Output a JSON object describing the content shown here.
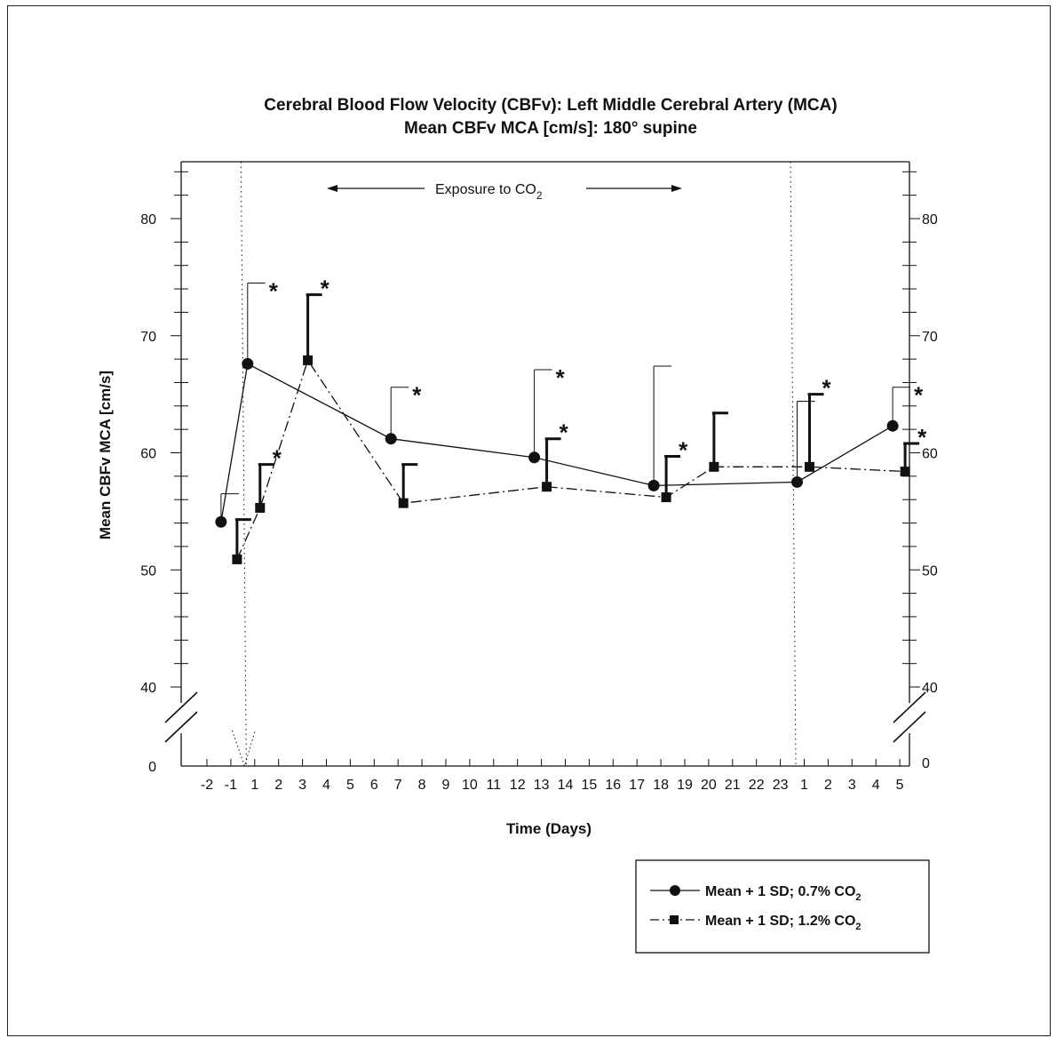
{
  "chart_data": {
    "type": "line",
    "title": "Cerebral Blood Flow Velocity (CBFv): Left Middle Cerebral Artery (MCA)",
    "subtitle": "Mean CBFv MCA [cm/s]: 180° supine",
    "ylabel": "Mean CBFv MCA [cm/s]",
    "xlabel": "Time (Days)",
    "ylim": [
      40,
      85
    ],
    "y_break_label": "0",
    "yticks": [
      40,
      50,
      60,
      70,
      80
    ],
    "x_tick_labels": [
      "-2",
      "-1",
      "1",
      "2",
      "3",
      "4",
      "5",
      "6",
      "7",
      "8",
      "9",
      "10",
      "11",
      "12",
      "13",
      "14",
      "15",
      "16",
      "17",
      "18",
      "19",
      "20",
      "21",
      "22",
      "23",
      "1",
      "2",
      "3",
      "4",
      "5"
    ],
    "annotation": {
      "text": "Exposure to CO",
      "subscript": "2"
    },
    "series": [
      {
        "name": "Mean + 1 SD; 0.7% CO2",
        "style": "solid-circle",
        "x_labels": [
          "-1",
          "1",
          "7",
          "13",
          "18",
          "1",
          "5"
        ],
        "values": [
          54.1,
          67.6,
          61.2,
          59.6,
          57.2,
          57.5,
          62.3
        ],
        "err_top": [
          56.5,
          74.5,
          65.6,
          67.1,
          67.4,
          64.4,
          65.6
        ],
        "significant": [
          false,
          true,
          true,
          true,
          false,
          false,
          true
        ]
      },
      {
        "name": "Mean + 1 SD; 1.2% CO2",
        "style": "dashdot-square",
        "x_labels": [
          "-1",
          "1",
          "3",
          "7",
          "13",
          "18",
          "20",
          "1",
          "5"
        ],
        "values": [
          50.9,
          55.3,
          67.9,
          55.7,
          57.1,
          56.2,
          58.8,
          58.8,
          58.4
        ],
        "err_top": [
          54.3,
          59.0,
          73.5,
          59.0,
          61.2,
          59.7,
          63.4,
          65.0,
          60.8
        ],
        "significant": [
          false,
          true,
          true,
          false,
          true,
          true,
          false,
          true,
          true
        ]
      }
    ],
    "legend": {
      "position": "bottom-right",
      "entries": [
        {
          "label": "Mean + 1 SD; 0.7% CO",
          "sub": "2"
        },
        {
          "label": "Mean + 1 SD; 1.2% CO",
          "sub": "2"
        }
      ]
    },
    "significance_marker": "*",
    "colors": {
      "ink": "#111111"
    }
  }
}
